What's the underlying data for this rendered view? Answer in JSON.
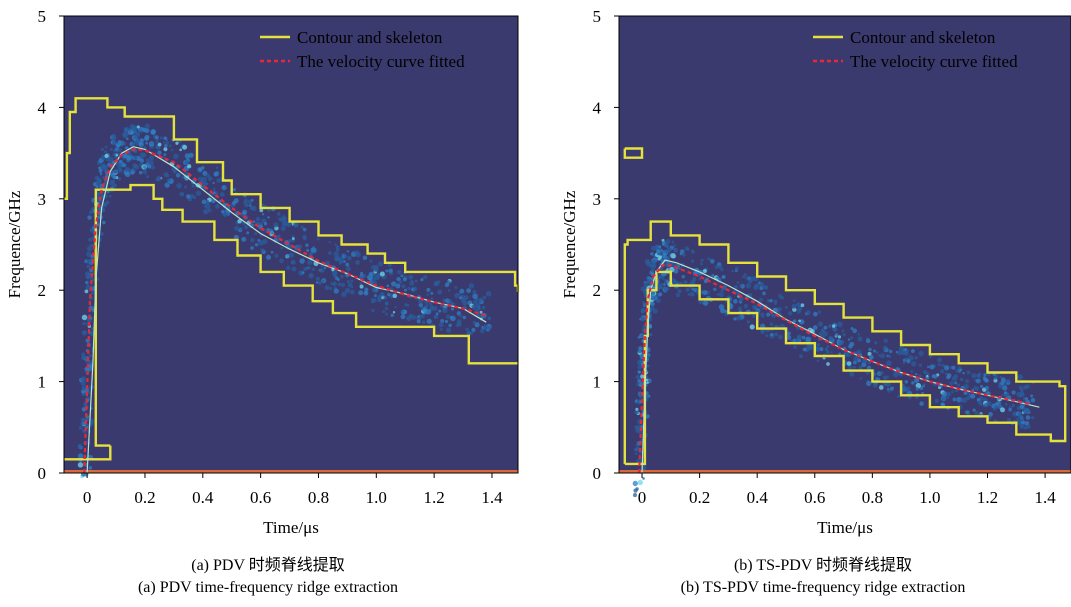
{
  "chart_data": [
    {
      "type": "line",
      "panel_id": "a",
      "xlabel": "Time/μs",
      "ylabel": "Frequence/GHz",
      "xlim": [
        -0.08,
        1.49
      ],
      "ylim": [
        0,
        5
      ],
      "xticks": [
        0,
        0.2,
        0.4,
        0.6,
        0.8,
        1.0,
        1.2,
        1.4
      ],
      "xtick_labels": [
        "0",
        "0.2",
        "0.4",
        "0.6",
        "0.8",
        "1.0",
        "1.2",
        "1.4"
      ],
      "yticks": [
        0,
        1,
        2,
        3,
        4,
        5
      ],
      "ytick_labels": [
        "0",
        "1",
        "2",
        "3",
        "4",
        "5"
      ],
      "legend_position": "top-right",
      "background_color": "#3b3a6e",
      "series": [
        {
          "name": "Contour and skeleton",
          "style": "solid",
          "color": "#e6e23c",
          "segments": [
            [
              [
                -0.08,
                3.0
              ],
              [
                -0.07,
                3.0
              ],
              [
                -0.07,
                3.5
              ],
              [
                -0.06,
                3.5
              ],
              [
                -0.06,
                3.95
              ],
              [
                -0.04,
                3.95
              ],
              [
                -0.04,
                4.1
              ],
              [
                0.07,
                4.1
              ],
              [
                0.07,
                4.0
              ],
              [
                0.13,
                4.0
              ],
              [
                0.13,
                3.9
              ],
              [
                0.3,
                3.9
              ],
              [
                0.3,
                3.65
              ],
              [
                0.38,
                3.65
              ],
              [
                0.38,
                3.4
              ],
              [
                0.47,
                3.4
              ],
              [
                0.47,
                3.2
              ],
              [
                0.5,
                3.2
              ],
              [
                0.5,
                3.05
              ],
              [
                0.6,
                3.05
              ],
              [
                0.6,
                2.9
              ],
              [
                0.7,
                2.9
              ],
              [
                0.7,
                2.75
              ],
              [
                0.8,
                2.75
              ],
              [
                0.8,
                2.6
              ],
              [
                0.88,
                2.6
              ],
              [
                0.88,
                2.5
              ],
              [
                0.97,
                2.5
              ],
              [
                0.97,
                2.4
              ],
              [
                1.03,
                2.4
              ],
              [
                1.03,
                2.3
              ],
              [
                1.1,
                2.3
              ],
              [
                1.1,
                2.2
              ],
              [
                1.48,
                2.2
              ],
              [
                1.48,
                2.05
              ],
              [
                1.49,
                2.05
              ],
              [
                1.49,
                1.98
              ]
            ],
            [
              [
                0.08,
                0.3
              ],
              [
                0.08,
                0.3
              ],
              [
                0.03,
                0.3
              ],
              [
                0.03,
                3.1
              ],
              [
                0.15,
                3.1
              ],
              [
                0.15,
                3.15
              ],
              [
                0.23,
                3.15
              ],
              [
                0.23,
                3.0
              ],
              [
                0.26,
                3.0
              ],
              [
                0.26,
                2.88
              ],
              [
                0.33,
                2.88
              ],
              [
                0.33,
                2.75
              ],
              [
                0.44,
                2.75
              ],
              [
                0.44,
                2.55
              ],
              [
                0.52,
                2.55
              ],
              [
                0.52,
                2.38
              ],
              [
                0.6,
                2.38
              ],
              [
                0.6,
                2.2
              ],
              [
                0.68,
                2.2
              ],
              [
                0.68,
                2.05
              ],
              [
                0.78,
                2.05
              ],
              [
                0.78,
                1.88
              ],
              [
                0.85,
                1.88
              ],
              [
                0.85,
                1.75
              ],
              [
                0.93,
                1.75
              ],
              [
                0.93,
                1.6
              ],
              [
                1.2,
                1.6
              ],
              [
                1.2,
                1.5
              ],
              [
                1.32,
                1.5
              ],
              [
                1.32,
                1.2
              ],
              [
                1.49,
                1.2
              ]
            ],
            [
              [
                -0.08,
                0.15
              ],
              [
                -0.07,
                0.15
              ],
              [
                -0.07,
                0.15
              ],
              [
                0.08,
                0.15
              ],
              [
                0.08,
                0.3
              ]
            ],
            [
              [
                0.0,
                0.0
              ],
              [
                0.02,
                1.2
              ],
              [
                0.03,
                2.1
              ],
              [
                0.05,
                2.9
              ],
              [
                0.08,
                3.3
              ],
              [
                0.12,
                3.5
              ],
              [
                0.16,
                3.57
              ],
              [
                0.2,
                3.54
              ],
              [
                0.3,
                3.35
              ],
              [
                0.4,
                3.1
              ],
              [
                0.5,
                2.85
              ],
              [
                0.6,
                2.62
              ],
              [
                0.7,
                2.45
              ],
              [
                0.8,
                2.3
              ],
              [
                0.9,
                2.18
              ],
              [
                1.0,
                2.03
              ],
              [
                1.1,
                1.96
              ],
              [
                1.2,
                1.87
              ],
              [
                1.3,
                1.8
              ],
              [
                1.38,
                1.65
              ]
            ]
          ]
        },
        {
          "name": "The velocity curve fitted",
          "style": "dashed",
          "color": "#e8283a",
          "points": [
            [
              -0.01,
              0.0
            ],
            [
              0.0,
              0.9
            ],
            [
              0.01,
              1.9
            ],
            [
              0.03,
              2.7
            ],
            [
              0.05,
              3.1
            ],
            [
              0.08,
              3.35
            ],
            [
              0.12,
              3.48
            ],
            [
              0.16,
              3.54
            ],
            [
              0.2,
              3.53
            ],
            [
              0.3,
              3.4
            ],
            [
              0.4,
              3.15
            ],
            [
              0.5,
              2.9
            ],
            [
              0.6,
              2.68
            ],
            [
              0.7,
              2.5
            ],
            [
              0.8,
              2.32
            ],
            [
              0.9,
              2.18
            ],
            [
              1.0,
              2.05
            ],
            [
              1.1,
              1.95
            ],
            [
              1.2,
              1.87
            ],
            [
              1.3,
              1.8
            ],
            [
              1.38,
              1.72
            ]
          ]
        }
      ]
    },
    {
      "type": "line",
      "panel_id": "b",
      "xlabel": "Time/μs",
      "ylabel": "Frequence/GHz",
      "xlim": [
        -0.08,
        1.49
      ],
      "ylim": [
        0,
        5
      ],
      "xticks": [
        0,
        0.2,
        0.4,
        0.6,
        0.8,
        1.0,
        1.2,
        1.4
      ],
      "xtick_labels": [
        "0",
        "0.2",
        "0.4",
        "0.6",
        "0.8",
        "1.0",
        "1.2",
        "1.4"
      ],
      "yticks": [
        0,
        1,
        2,
        3,
        4,
        5
      ],
      "ytick_labels": [
        "0",
        "1",
        "2",
        "3",
        "4",
        "5"
      ],
      "legend_position": "top-right",
      "background_color": "#3b3a6e",
      "series": [
        {
          "name": "Contour and skeleton",
          "style": "solid",
          "color": "#e6e23c",
          "segments": [
            [
              [
                -0.06,
                0.1
              ],
              [
                -0.06,
                2.5
              ],
              [
                -0.05,
                2.5
              ],
              [
                -0.05,
                2.55
              ],
              [
                0.03,
                2.55
              ],
              [
                0.03,
                2.75
              ],
              [
                0.1,
                2.75
              ],
              [
                0.1,
                2.6
              ],
              [
                0.2,
                2.6
              ],
              [
                0.2,
                2.5
              ],
              [
                0.3,
                2.5
              ],
              [
                0.3,
                2.3
              ],
              [
                0.4,
                2.3
              ],
              [
                0.4,
                2.15
              ],
              [
                0.5,
                2.15
              ],
              [
                0.5,
                2.0
              ],
              [
                0.6,
                2.0
              ],
              [
                0.6,
                1.85
              ],
              [
                0.7,
                1.85
              ],
              [
                0.7,
                1.7
              ],
              [
                0.8,
                1.7
              ],
              [
                0.8,
                1.55
              ],
              [
                0.9,
                1.55
              ],
              [
                0.9,
                1.4
              ],
              [
                1.0,
                1.4
              ],
              [
                1.0,
                1.3
              ],
              [
                1.1,
                1.3
              ],
              [
                1.1,
                1.2
              ],
              [
                1.2,
                1.2
              ],
              [
                1.2,
                1.1
              ],
              [
                1.3,
                1.1
              ],
              [
                1.3,
                1.0
              ],
              [
                1.45,
                1.0
              ],
              [
                1.45,
                0.95
              ],
              [
                1.47,
                0.95
              ],
              [
                1.47,
                0.35
              ],
              [
                1.42,
                0.35
              ],
              [
                1.42,
                0.42
              ],
              [
                1.3,
                0.42
              ],
              [
                1.3,
                0.55
              ],
              [
                1.2,
                0.55
              ],
              [
                1.2,
                0.62
              ],
              [
                1.1,
                0.62
              ],
              [
                1.1,
                0.72
              ],
              [
                1.0,
                0.72
              ],
              [
                1.0,
                0.85
              ],
              [
                0.9,
                0.85
              ],
              [
                0.9,
                1.0
              ],
              [
                0.8,
                1.0
              ],
              [
                0.8,
                1.12
              ],
              [
                0.7,
                1.12
              ],
              [
                0.7,
                1.28
              ],
              [
                0.6,
                1.28
              ],
              [
                0.6,
                1.42
              ],
              [
                0.5,
                1.42
              ],
              [
                0.5,
                1.58
              ],
              [
                0.4,
                1.58
              ],
              [
                0.4,
                1.75
              ],
              [
                0.3,
                1.75
              ],
              [
                0.3,
                1.9
              ],
              [
                0.2,
                1.9
              ],
              [
                0.2,
                2.05
              ],
              [
                0.1,
                2.05
              ],
              [
                0.1,
                2.2
              ],
              [
                0.05,
                2.2
              ],
              [
                0.05,
                2.0
              ],
              [
                0.02,
                2.0
              ],
              [
                0.02,
                1.5
              ],
              [
                0.01,
                1.5
              ],
              [
                0.01,
                0.1
              ],
              [
                -0.06,
                0.1
              ]
            ],
            [
              [
                -0.06,
                3.55
              ],
              [
                0.0,
                3.55
              ],
              [
                0.0,
                3.45
              ],
              [
                -0.06,
                3.45
              ],
              [
                -0.06,
                3.55
              ]
            ],
            [
              [
                0.0,
                0.0
              ],
              [
                0.01,
                0.9
              ],
              [
                0.02,
                1.6
              ],
              [
                0.03,
                2.0
              ],
              [
                0.05,
                2.2
              ],
              [
                0.08,
                2.33
              ],
              [
                0.12,
                2.3
              ],
              [
                0.2,
                2.2
              ],
              [
                0.3,
                2.05
              ],
              [
                0.4,
                1.88
              ],
              [
                0.5,
                1.68
              ],
              [
                0.6,
                1.52
              ],
              [
                0.7,
                1.35
              ],
              [
                0.8,
                1.22
              ],
              [
                0.9,
                1.1
              ],
              [
                1.0,
                1.0
              ],
              [
                1.1,
                0.92
              ],
              [
                1.2,
                0.85
              ],
              [
                1.3,
                0.78
              ],
              [
                1.38,
                0.72
              ]
            ]
          ]
        },
        {
          "name": "The velocity curve fitted",
          "style": "dashed",
          "color": "#e8283a",
          "points": [
            [
              -0.01,
              0.0
            ],
            [
              0.0,
              0.8
            ],
            [
              0.01,
              1.5
            ],
            [
              0.02,
              1.9
            ],
            [
              0.04,
              2.15
            ],
            [
              0.07,
              2.27
            ],
            [
              0.1,
              2.27
            ],
            [
              0.2,
              2.15
            ],
            [
              0.3,
              2.0
            ],
            [
              0.4,
              1.85
            ],
            [
              0.5,
              1.67
            ],
            [
              0.6,
              1.5
            ],
            [
              0.7,
              1.35
            ],
            [
              0.8,
              1.22
            ],
            [
              0.9,
              1.1
            ],
            [
              1.0,
              1.0
            ],
            [
              1.1,
              0.92
            ],
            [
              1.2,
              0.85
            ],
            [
              1.3,
              0.79
            ],
            [
              1.35,
              0.75
            ]
          ]
        }
      ]
    }
  ],
  "captions": {
    "a_cn": "(a) PDV 时频脊线提取",
    "a_en": "(a) PDV time-frequency ridge extraction",
    "b_cn": "(b) TS-PDV 时频脊线提取",
    "b_en": "(b) TS-PDV time-frequency ridge extraction"
  }
}
